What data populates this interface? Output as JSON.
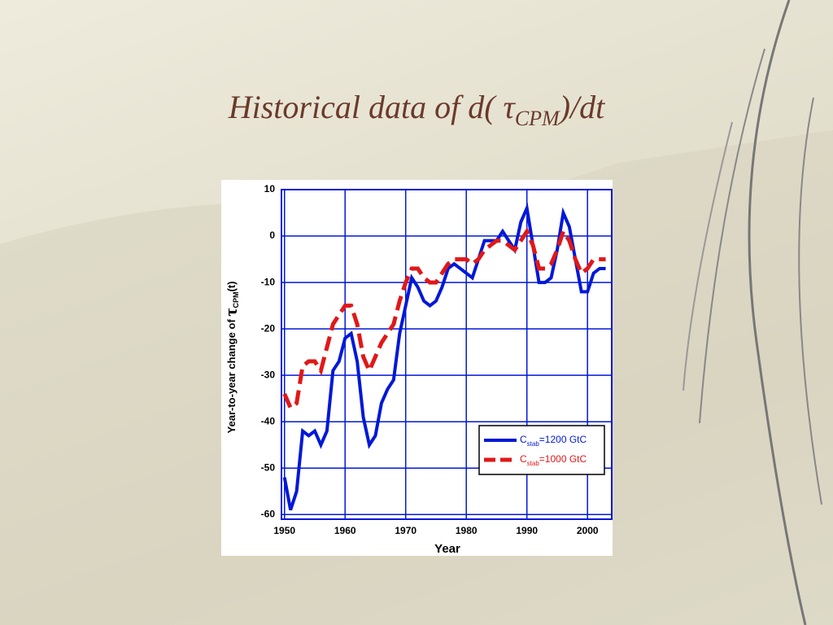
{
  "title": {
    "main": "Historical data of d( τ",
    "sub": "CPM",
    "end": ")/dt"
  },
  "chart_data": {
    "type": "line",
    "xlabel": "Year",
    "ylabel": [
      "Year-to-year change of",
      "τ",
      "CPM",
      "(t)"
    ],
    "x": [
      1950,
      1951,
      1952,
      1953,
      1954,
      1955,
      1956,
      1957,
      1958,
      1959,
      1960,
      1961,
      1962,
      1963,
      1964,
      1965,
      1966,
      1967,
      1968,
      1969,
      1970,
      1971,
      1972,
      1973,
      1974,
      1975,
      1976,
      1977,
      1978,
      1979,
      1980,
      1981,
      1982,
      1983,
      1984,
      1985,
      1986,
      1987,
      1988,
      1989,
      1990,
      1991,
      1992,
      1993,
      1994,
      1995,
      1996,
      1997,
      1998,
      1999,
      2000,
      2001,
      2002,
      2003
    ],
    "series": [
      {
        "name": [
          "C",
          "stab",
          "=1200 GtC"
        ],
        "color": "#0018d8",
        "dashed": false,
        "values": [
          -52,
          -59,
          -55,
          -42,
          -43,
          -42,
          -45,
          -42,
          -29,
          -27,
          -22,
          -21,
          -27,
          -39,
          -45,
          -43,
          -36,
          -33,
          -31,
          -21,
          -15,
          -9,
          -11,
          -14,
          -15,
          -14,
          -11,
          -7,
          -6,
          -7,
          -8,
          -9,
          -5,
          -1,
          -1,
          -1,
          1,
          -1,
          -3,
          3,
          6,
          -2,
          -10,
          -10,
          -9,
          -3,
          5,
          2,
          -5,
          -12,
          -12,
          -8,
          -7,
          -7
        ]
      },
      {
        "name": [
          "C",
          "stab",
          "=1000 GtC"
        ],
        "color": "#e01818",
        "dashed": true,
        "values": [
          -34,
          -37,
          -36,
          -28,
          -27,
          -27,
          -29,
          -24,
          -19,
          -17,
          -15,
          -15,
          -19,
          -26,
          -29,
          -26,
          -23,
          -21,
          -19,
          -14,
          -10,
          -7,
          -7,
          -9,
          -10,
          -10,
          -8,
          -6,
          -5,
          -5,
          -5,
          -6,
          -5,
          -3,
          -2,
          -1,
          -1,
          -2,
          -3,
          -1,
          1,
          -2,
          -7,
          -7,
          -6,
          -3,
          1,
          -1,
          -5,
          -8,
          -7,
          -5,
          -5,
          -5
        ]
      }
    ],
    "xlim": [
      1949.5,
      2004
    ],
    "xticks": [
      1950,
      1960,
      1970,
      1980,
      1990,
      2000
    ],
    "ylim": [
      -61,
      10
    ],
    "yticks": [
      10,
      0,
      -10,
      -20,
      -30,
      -40,
      -50,
      -60
    ],
    "grid": true,
    "grid_color": "#0018d8",
    "legend": "lower right"
  }
}
